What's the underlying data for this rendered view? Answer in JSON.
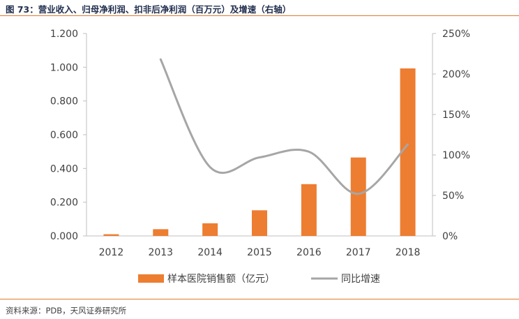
{
  "header": {
    "title": "图 73：营业收入、归母净利润、扣非后净利润（百万元）及增速（右轴）"
  },
  "footer": {
    "source": "资料来源：PDB，天风证券研究所"
  },
  "chart_data": {
    "type": "bar",
    "categories": [
      "2012",
      "2013",
      "2014",
      "2015",
      "2016",
      "2017",
      "2018"
    ],
    "series": [
      {
        "name": "样本医院销售额（亿元）",
        "type": "bar",
        "axis": "left",
        "values": [
          0.01,
          0.04,
          0.075,
          0.152,
          0.307,
          0.465,
          0.993
        ]
      },
      {
        "name": "同比增速",
        "type": "line",
        "axis": "right",
        "smooth": true,
        "values": [
          null,
          2.18,
          0.85,
          0.97,
          1.04,
          0.52,
          1.13
        ]
      }
    ],
    "y_left": {
      "ylim": [
        0,
        1.2
      ],
      "ticks": [
        "0.000",
        "0.200",
        "0.400",
        "0.600",
        "0.800",
        "1.000",
        "1.200"
      ]
    },
    "y_right": {
      "ylim": [
        0,
        2.5
      ],
      "ticks": [
        "0%",
        "50%",
        "100%",
        "150%",
        "200%",
        "250%"
      ]
    },
    "grid": false,
    "legend_position": "bottom",
    "colors": {
      "bar": "#ed7d31",
      "line": "#a6a6a6",
      "axis": "#bfbfbf",
      "text": "#404040"
    }
  }
}
